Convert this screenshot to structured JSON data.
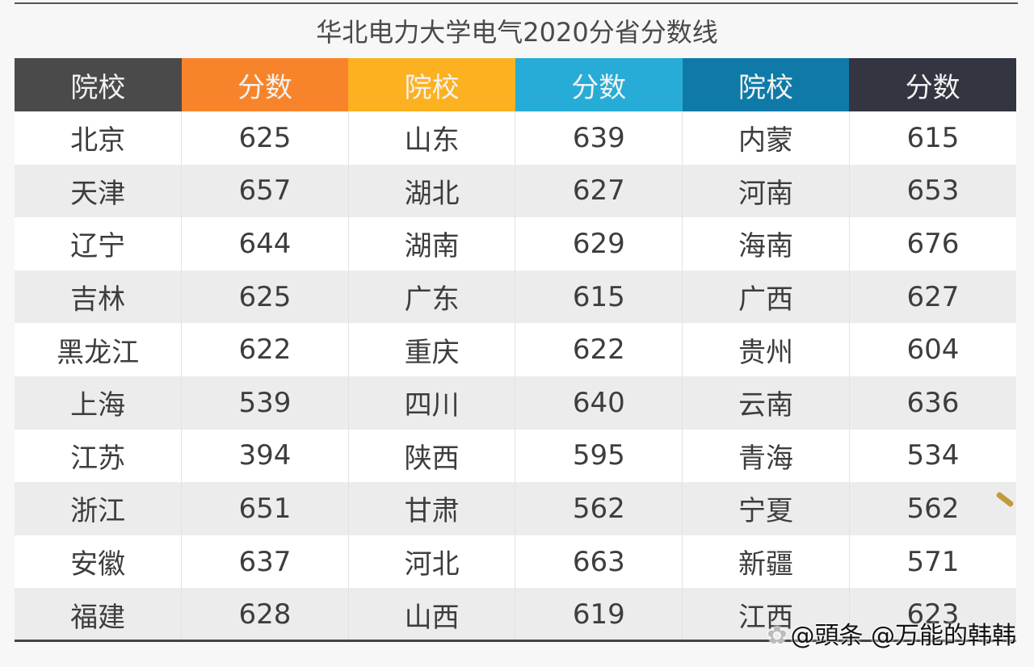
{
  "title": "华北电力大学电气2020分省分数线",
  "header": {
    "columns": [
      {
        "label": "院校",
        "color": "#4a4a4a"
      },
      {
        "label": "分数",
        "color": "#f7842a"
      },
      {
        "label": "院校",
        "color": "#fbb120"
      },
      {
        "label": "分数",
        "color": "#26acd6"
      },
      {
        "label": "院校",
        "color": "#0f7aa8"
      },
      {
        "label": "分数",
        "color": "#333640"
      }
    ]
  },
  "rows": [
    [
      "北京",
      "625",
      "山东",
      "639",
      "内蒙",
      "615"
    ],
    [
      "天津",
      "657",
      "湖北",
      "627",
      "河南",
      "653"
    ],
    [
      "辽宁",
      "644",
      "湖南",
      "629",
      "海南",
      "676"
    ],
    [
      "吉林",
      "625",
      "广东",
      "615",
      "广西",
      "627"
    ],
    [
      "黑龙江",
      "622",
      "重庆",
      "622",
      "贵州",
      "604"
    ],
    [
      "上海",
      "539",
      "四川",
      "640",
      "云南",
      "636"
    ],
    [
      "江苏",
      "394",
      "陕西",
      "595",
      "青海",
      "534"
    ],
    [
      "浙江",
      "651",
      "甘肃",
      "562",
      "宁夏",
      "562"
    ],
    [
      "安徽",
      "637",
      "河北",
      "663",
      "新疆",
      "571"
    ],
    [
      "福建",
      "628",
      "山西",
      "619",
      "江西",
      "623"
    ]
  ],
  "watermark": {
    "logo": "✿",
    "text": "@頭条 @万能的韩韩"
  }
}
